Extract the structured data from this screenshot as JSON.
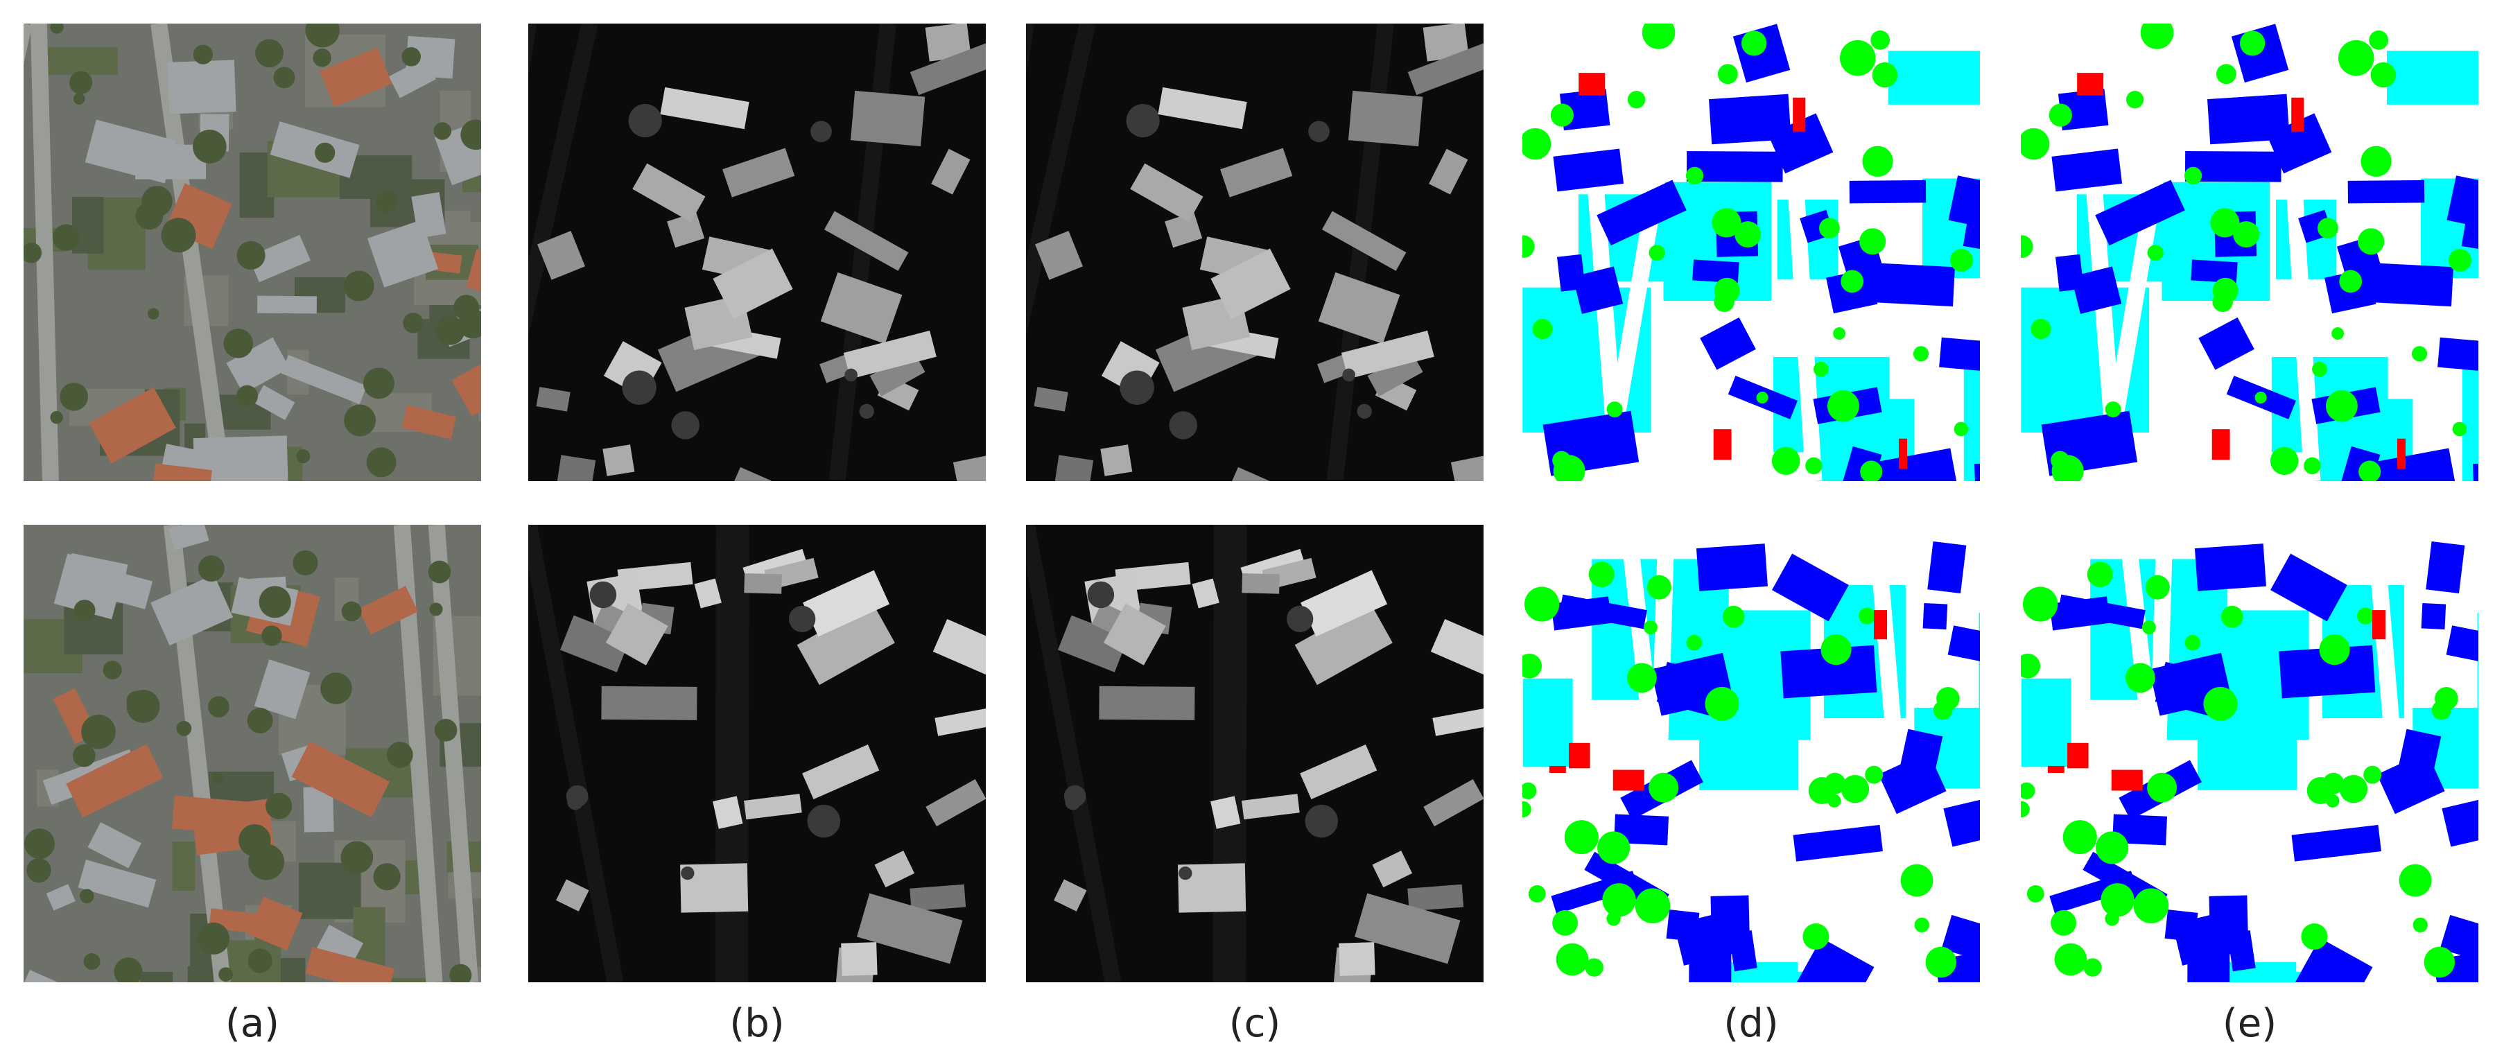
{
  "figure": {
    "captions": [
      "(a)",
      "(b)",
      "(c)",
      "(d)",
      "(e)"
    ]
  }
}
